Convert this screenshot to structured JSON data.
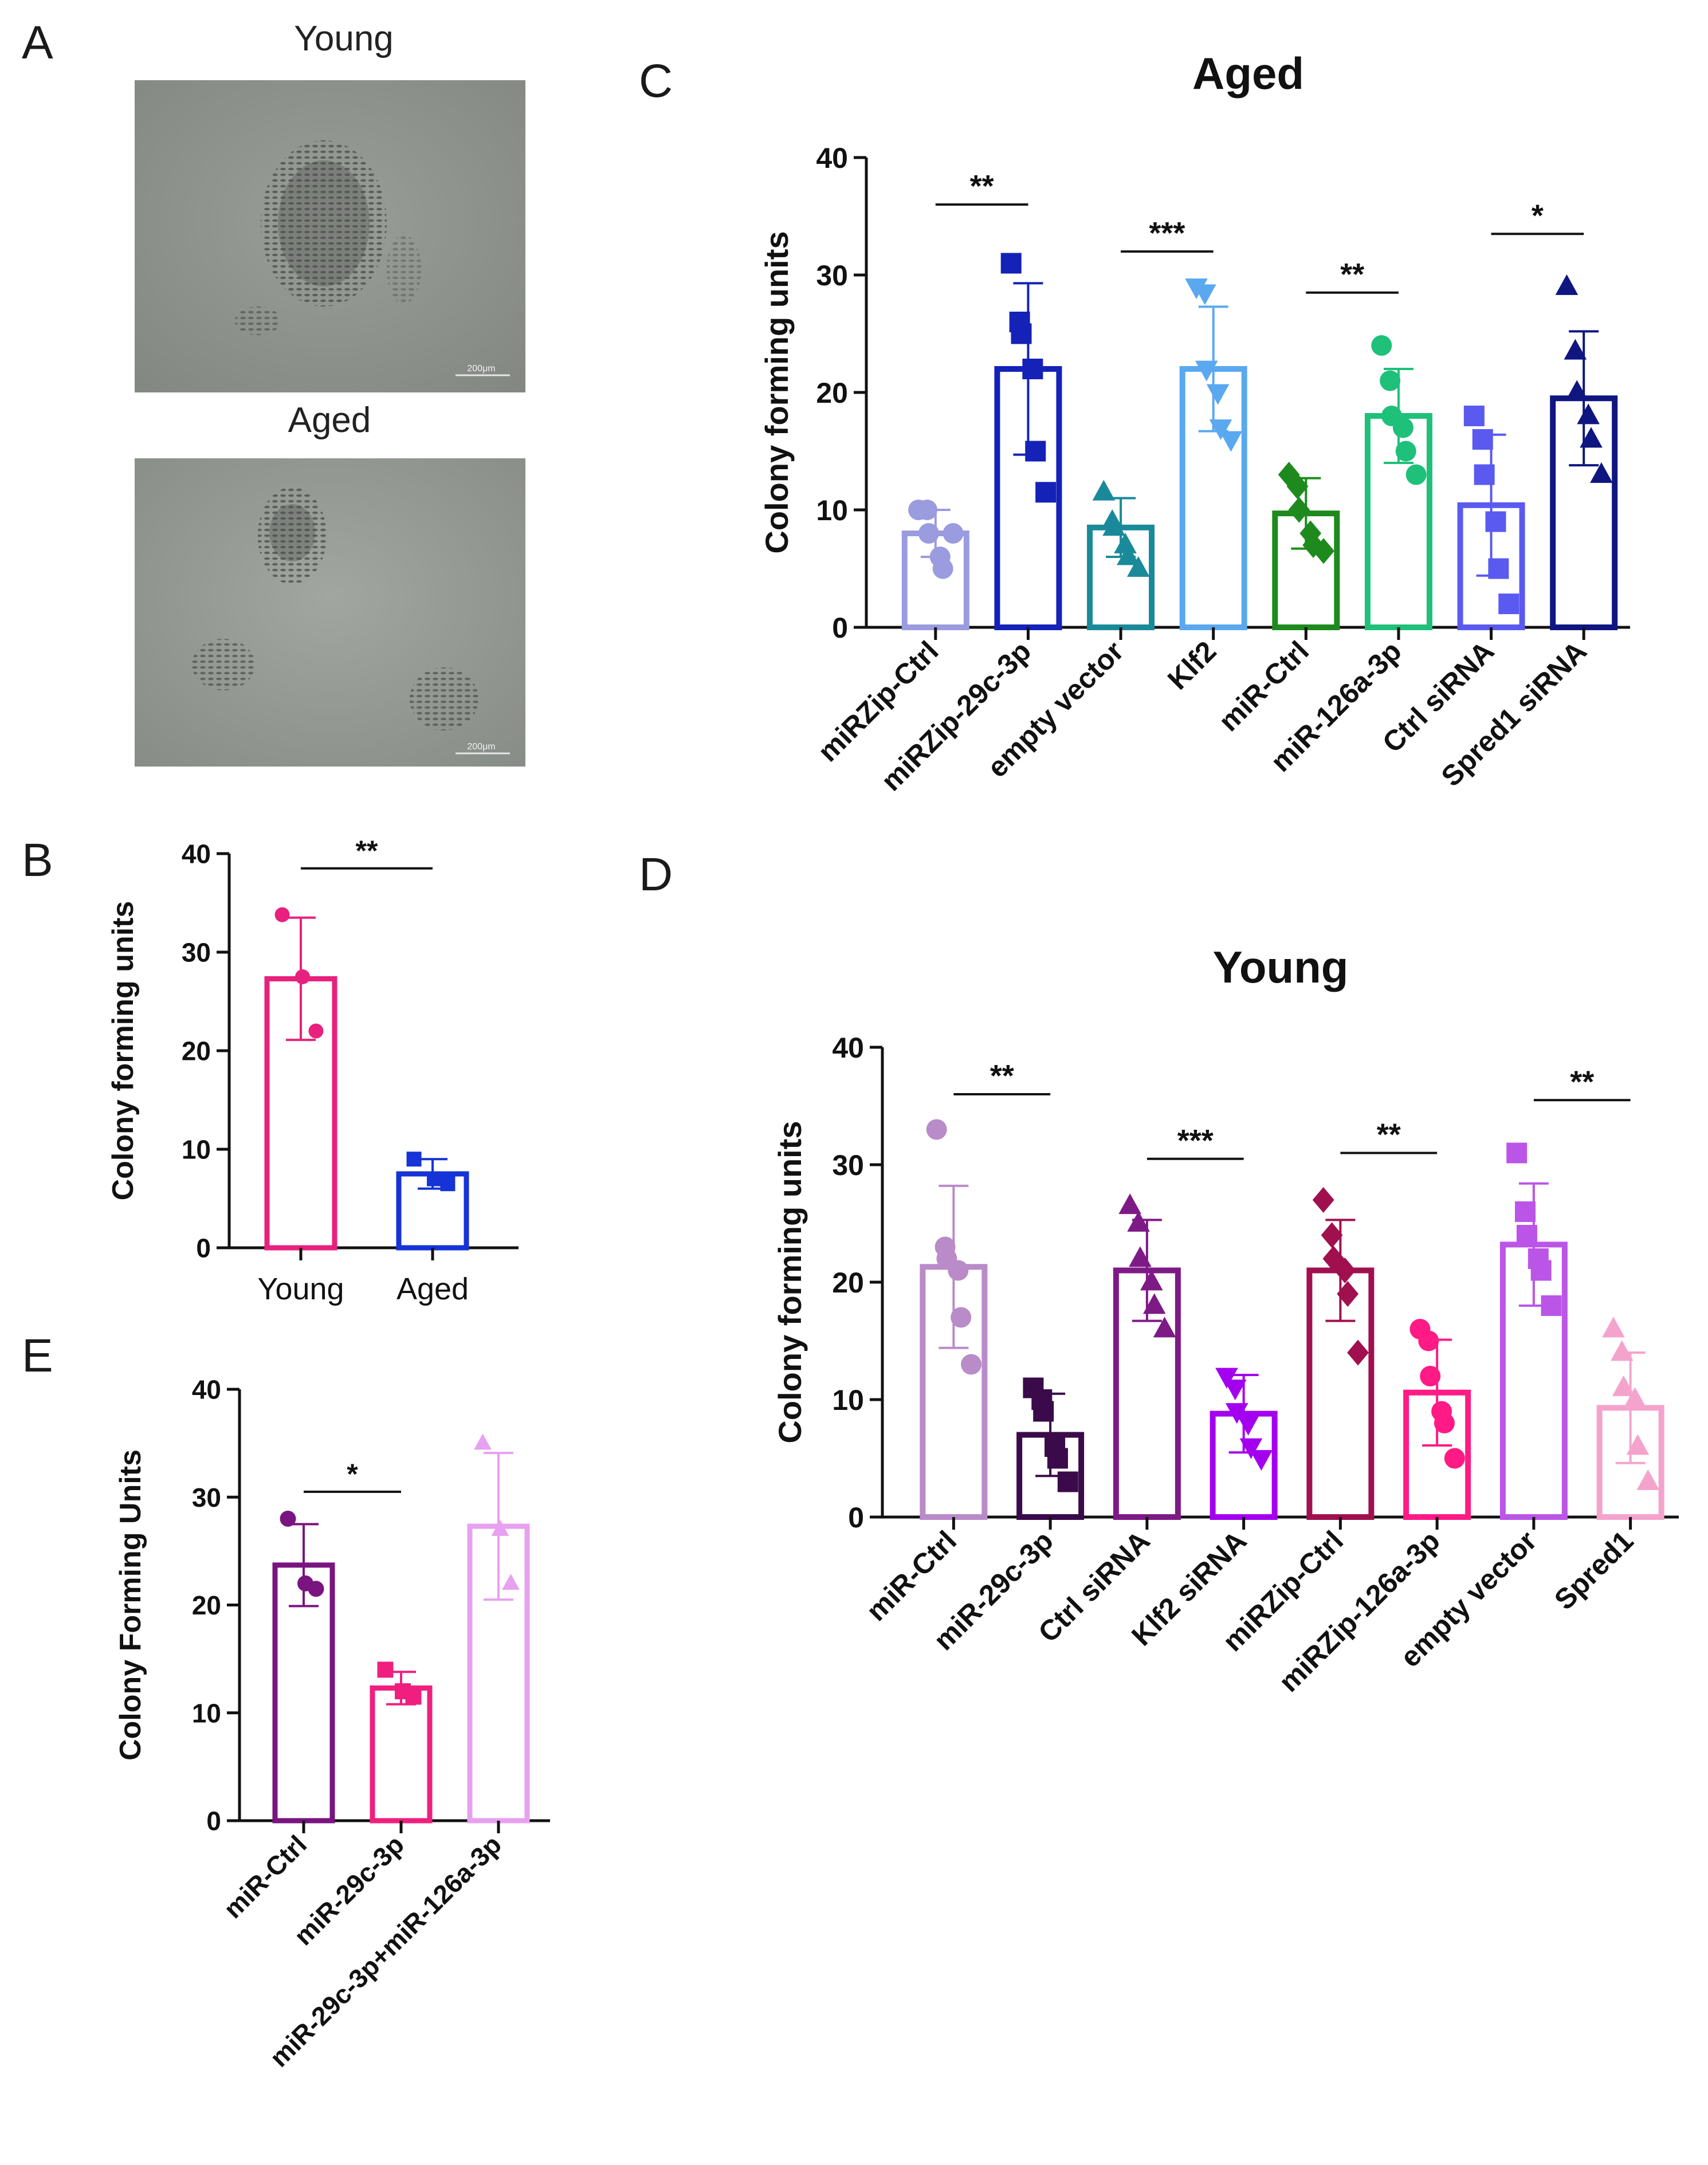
{
  "panels": {
    "a": "A",
    "b": "B",
    "c": "C",
    "d": "D",
    "e": "E"
  },
  "micrographs": {
    "young_label": "Young",
    "aged_label": "Aged",
    "young_scale": "200μm",
    "aged_scale": "200μm"
  },
  "colors": {
    "young_b": "#E8217E",
    "aged_b": "#1533D6",
    "aged_c": [
      "#9B9BE0",
      "#1422B8",
      "#1A8A9A",
      "#5AA8F0",
      "#1E8A1E",
      "#1FC07A",
      "#5A5AF0",
      "#0F1680"
    ],
    "young_d": [
      "#B98BC8",
      "#3A0A4A",
      "#7E1A86",
      "#A400F0",
      "#A0104F",
      "#FF1A85",
      "#BB55E8",
      "#F4A4CC"
    ],
    "e": [
      "#7A1480",
      "#F01F7F",
      "#E8A0F0"
    ]
  },
  "chart_data": [
    {
      "id": "B",
      "type": "bar",
      "title": "",
      "ylabel": "Colony forming units",
      "ylim": [
        0,
        40
      ],
      "yticks": [
        0,
        10,
        20,
        30,
        40
      ],
      "categories": [
        "Young",
        "Aged"
      ],
      "values": [
        27.3,
        7.5
      ],
      "errors": [
        6.2,
        1.5
      ],
      "markers": [
        "circle",
        "square"
      ],
      "points": [
        [
          33.8,
          27.5,
          22.0
        ],
        [
          9.0,
          7.0,
          6.5
        ]
      ],
      "significance": [
        {
          "from": 0,
          "to": 1,
          "y": 38.5,
          "label": "**"
        }
      ],
      "label_style": "flat"
    },
    {
      "id": "C",
      "type": "bar",
      "title": "Aged",
      "ylabel": "Colony forming units",
      "ylim": [
        0,
        40
      ],
      "yticks": [
        0,
        10,
        20,
        30,
        40
      ],
      "categories": [
        "miRZip-Ctrl",
        "miRZip-29c-3p",
        "empty vector",
        "Klf2",
        "miR-Ctrl",
        "miR-126a-3p",
        "Ctrl siRNA",
        "Spred1 siRNA"
      ],
      "values": [
        8.0,
        22.0,
        8.5,
        22.0,
        9.7,
        18.0,
        10.4,
        19.5
      ],
      "errors": [
        2.0,
        7.3,
        2.5,
        5.3,
        3.0,
        4.0,
        6.0,
        5.7
      ],
      "markers": [
        "circle",
        "square",
        "triangle",
        "triangle-down",
        "diamond",
        "circle",
        "square",
        "triangle"
      ],
      "points": [
        [
          10.0,
          10.0,
          8.0,
          6.0,
          5.0,
          8.0
        ],
        [
          31.0,
          26.0,
          25.0,
          22.0,
          15.0,
          11.5
        ],
        [
          11.5,
          9.0,
          8.5,
          7.0,
          6.0,
          5.0
        ],
        [
          29.0,
          28.5,
          22.0,
          20.0,
          17.0,
          16.0
        ],
        [
          13.0,
          12.0,
          10.0,
          8.0,
          7.0,
          6.5
        ],
        [
          24.0,
          21.0,
          18.0,
          17.0,
          15.0,
          13.0
        ],
        [
          18.0,
          16.0,
          13.0,
          9.0,
          5.0,
          2.0
        ],
        [
          29.0,
          23.5,
          20.0,
          18.0,
          16.0,
          13.0
        ]
      ],
      "significance": [
        {
          "from": 0,
          "to": 1,
          "y": 36.0,
          "label": "**"
        },
        {
          "from": 2,
          "to": 3,
          "y": 32.0,
          "label": "***"
        },
        {
          "from": 4,
          "to": 5,
          "y": 28.5,
          "label": "**"
        },
        {
          "from": 6,
          "to": 7,
          "y": 33.5,
          "label": "*"
        }
      ],
      "label_style": "rotated"
    },
    {
      "id": "D",
      "type": "bar",
      "title": "Young",
      "ylabel": "Colony forming units",
      "ylim": [
        0,
        40
      ],
      "yticks": [
        0,
        10,
        20,
        30,
        40
      ],
      "categories": [
        "miR-Ctrl",
        "miR-29c-3p",
        "Ctrl siRNA",
        "Klf2 siRNA",
        "miRZip-Ctrl",
        "miRZip-126a-3p",
        "empty vector",
        "Spred1"
      ],
      "values": [
        21.3,
        7.0,
        21.0,
        8.8,
        21.0,
        10.6,
        23.2,
        9.3
      ],
      "errors": [
        6.9,
        3.5,
        4.3,
        3.3,
        4.3,
        4.5,
        5.2,
        4.7
      ],
      "markers": [
        "circle",
        "square",
        "triangle",
        "triangle-down",
        "diamond",
        "circle",
        "square",
        "triangle"
      ],
      "points": [
        [
          33.0,
          23.0,
          22.0,
          21.0,
          17.0,
          13.0
        ],
        [
          11.0,
          10.0,
          9.0,
          6.0,
          5.0,
          3.0
        ],
        [
          26.5,
          25.0,
          22.0,
          20.0,
          18.0,
          16.0
        ],
        [
          12.0,
          11.0,
          9.0,
          8.0,
          6.0,
          5.0
        ],
        [
          27.0,
          24.0,
          22.0,
          21.0,
          19.0,
          14.0
        ],
        [
          16.0,
          15.0,
          12.0,
          9.0,
          8.0,
          5.0
        ],
        [
          31.0,
          26.0,
          24.0,
          22.0,
          21.0,
          18.0
        ],
        [
          16.0,
          14.0,
          11.0,
          10.0,
          6.0,
          3.0
        ]
      ],
      "significance": [
        {
          "from": 0,
          "to": 1,
          "y": 36.0,
          "label": "**"
        },
        {
          "from": 2,
          "to": 3,
          "y": 30.5,
          "label": "***"
        },
        {
          "from": 4,
          "to": 5,
          "y": 31.0,
          "label": "**"
        },
        {
          "from": 6,
          "to": 7,
          "y": 35.5,
          "label": "**"
        }
      ],
      "label_style": "rotated"
    },
    {
      "id": "E",
      "type": "bar",
      "title": "",
      "ylabel": "Colony Forming Units",
      "ylim": [
        0,
        40
      ],
      "yticks": [
        0,
        10,
        20,
        30,
        40
      ],
      "categories": [
        "miR-Ctrl",
        "miR-29c-3p",
        "miR-29c-3p+miR-126a-3p"
      ],
      "values": [
        23.7,
        12.3,
        27.3
      ],
      "errors": [
        3.8,
        1.5,
        6.8
      ],
      "markers": [
        "circle",
        "square",
        "triangle"
      ],
      "points": [
        [
          28.0,
          22.0,
          21.5
        ],
        [
          14.0,
          12.0,
          11.5
        ],
        [
          35.0,
          27.0,
          22.0
        ]
      ],
      "significance": [
        {
          "from": 0,
          "to": 1,
          "y": 30.5,
          "label": "*"
        }
      ],
      "label_style": "rotated"
    }
  ]
}
